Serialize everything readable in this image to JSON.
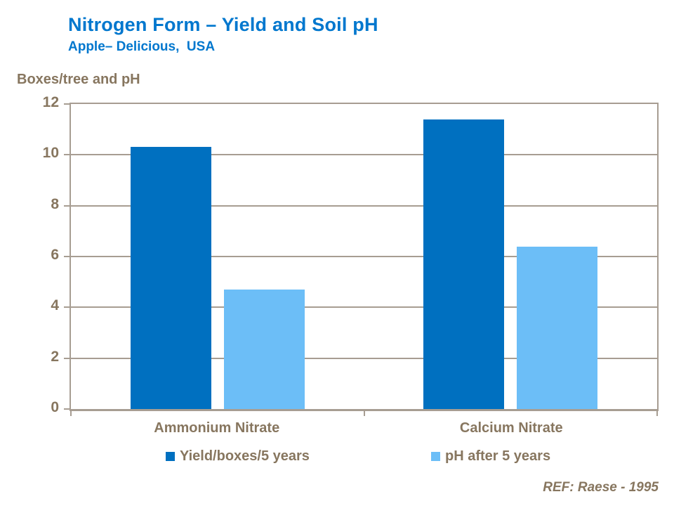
{
  "header": {
    "title": "Nitrogen Form – Yield and Soil pH",
    "subtitle": "Apple– Delicious,  USA"
  },
  "chart": {
    "axis_heading": "Boxes/tree and pH",
    "y_ticks": [
      "12",
      "10",
      "8",
      "6",
      "4",
      "2",
      "0"
    ],
    "categories": [
      "Ammonium Nitrate",
      "Calcium Nitrate"
    ],
    "legend": [
      {
        "label": "Yield/boxes/5 years",
        "color": "#0070C0"
      },
      {
        "label": "pH after 5 years",
        "color": "#6CBEF7"
      }
    ],
    "ref": "REF: Raese - 1995"
  },
  "chart_data": {
    "type": "bar",
    "title": "Nitrogen Form – Yield and Soil pH",
    "subtitle": "Apple– Delicious, USA",
    "categories": [
      "Ammonium Nitrate",
      "Calcium Nitrate"
    ],
    "series": [
      {
        "name": "Yield/boxes/5 years",
        "values": [
          10.3,
          11.4
        ],
        "color": "#0070C0"
      },
      {
        "name": "pH after 5 years",
        "values": [
          4.7,
          6.4
        ],
        "color": "#6CBEF7"
      }
    ],
    "ylabel": "Boxes/tree and pH",
    "xlabel": "",
    "ylim": [
      0,
      12
    ],
    "y_tick_step": 2,
    "grid": true,
    "legend_position": "bottom",
    "annotation": "REF: Raese - 1995"
  },
  "colors": {
    "title_blue": "#0077CE",
    "dark_blue": "#0070C0",
    "light_blue": "#6CBEF7",
    "text_brown": "#87765F",
    "grid_brown": "#A79D92"
  }
}
